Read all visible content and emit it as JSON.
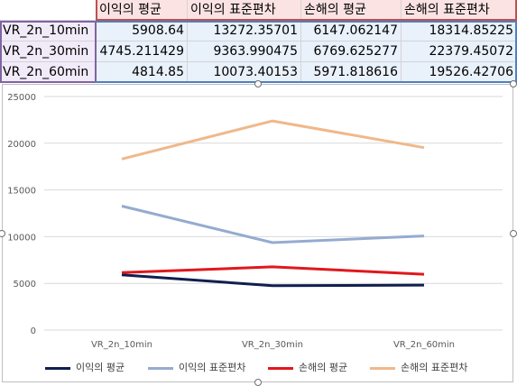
{
  "sheet": {
    "headers": [
      "",
      "이익의 평균",
      "이익의 표준편차",
      "손해의 평균",
      "손해의 표준편차"
    ],
    "rows": [
      {
        "label": "VR_2n_10min",
        "values": [
          "5908.64",
          "13272.35701",
          "6147.062147",
          "18314.85225"
        ]
      },
      {
        "label": "VR_2n_30min",
        "values": [
          "4745.211429",
          "9363.990475",
          "6769.625277",
          "22379.45072"
        ]
      },
      {
        "label": "VR_2n_60min",
        "values": [
          "4814.85",
          "10073.40153",
          "5971.818616",
          "19526.42706"
        ]
      }
    ]
  },
  "chart_data": {
    "type": "line",
    "categories": [
      "VR_2n_10min",
      "VR_2n_30min",
      "VR_2n_60min"
    ],
    "series": [
      {
        "name": "이익의 평균",
        "color": "#0f1f4f",
        "values": [
          5908.64,
          4745.211429,
          4814.85
        ]
      },
      {
        "name": "이익의 표준편차",
        "color": "#95abd0",
        "values": [
          13272.35701,
          9363.990475,
          10073.40153
        ]
      },
      {
        "name": "손해의 평균",
        "color": "#e0181d",
        "values": [
          6147.062147,
          6769.625277,
          5971.818616
        ]
      },
      {
        "name": "손해의 표준편차",
        "color": "#f0b88a",
        "values": [
          18314.85225,
          22379.45072,
          19526.42706
        ]
      }
    ],
    "yticks": [
      "0",
      "5000",
      "10000",
      "15000",
      "20000",
      "25000"
    ],
    "ylim": [
      0,
      25000
    ],
    "grid": true,
    "legend": "bottom"
  }
}
